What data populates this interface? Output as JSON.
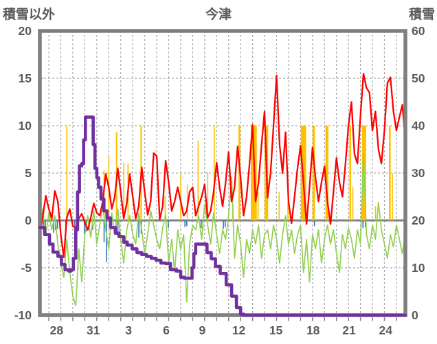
{
  "header": {
    "left_axis_title": "積雪以外",
    "title": "今津",
    "right_axis_title": "積雪"
  },
  "chart_data": {
    "type": "line",
    "title": "今津",
    "x_axis": {
      "unit": "days (Dec 26 - Jan 26, daily gridlines)",
      "range": [
        0,
        30.5
      ],
      "gridline_start": 0.75,
      "gridline_step": 1,
      "gridline_count": 30,
      "tick_labels": [
        {
          "label": "28",
          "t": 1.4
        },
        {
          "label": "31",
          "t": 4.45
        },
        {
          "label": "3",
          "t": 7.4
        },
        {
          "label": "6",
          "t": 10.55
        },
        {
          "label": "9",
          "t": 13.55
        },
        {
          "label": "12",
          "t": 16.6
        },
        {
          "label": "15",
          "t": 19.7
        },
        {
          "label": "18",
          "t": 22.8
        },
        {
          "label": "21",
          "t": 25.8
        },
        {
          "label": "24",
          "t": 28.85
        }
      ]
    },
    "left_axis": {
      "label": "積雪以外",
      "range": [
        -10,
        20
      ],
      "ticks": [
        "20",
        "15",
        "10",
        "5",
        "0",
        "-5",
        "-10"
      ],
      "tick_values": [
        20,
        15,
        10,
        5,
        0,
        -5,
        -10
      ],
      "gridline_values": [
        15,
        10,
        5,
        -5
      ],
      "zero_line_value": 0
    },
    "right_axis": {
      "label": "積雪",
      "range": [
        0,
        60
      ],
      "ticks": [
        "60",
        "50",
        "40",
        "30",
        "20",
        "10",
        "0"
      ],
      "tick_values": [
        60,
        50,
        40,
        30,
        20,
        10,
        0
      ]
    },
    "grid": {
      "vertical": true,
      "horizontal": true,
      "dashed": true,
      "gridline_color": "#A6A6A6",
      "zero_line_color": "#808080",
      "border_color": "#7F7F7F",
      "text_color": "#595959",
      "legend": "none"
    },
    "series": [
      {
        "name": "orange-bars",
        "type": "bar",
        "axis": "left",
        "color": "#FFC000",
        "bars": [
          [
            0.85,
            0.8,
            0.08
          ],
          [
            2.25,
            10,
            0.1
          ],
          [
            5.35,
            5.3,
            0.08
          ],
          [
            5.75,
            6.8,
            0.08
          ],
          [
            6.4,
            9.3,
            0.12
          ],
          [
            7.0,
            6.1,
            0.08
          ],
          [
            7.35,
            6.0,
            0.08
          ],
          [
            8.45,
            10,
            0.12
          ],
          [
            10.45,
            2.6,
            0.08
          ],
          [
            11.75,
            4.9,
            0.08
          ],
          [
            12.3,
            3.8,
            0.08
          ],
          [
            13.2,
            8.4,
            0.08
          ],
          [
            14.0,
            5.1,
            0.08
          ],
          [
            14.55,
            10,
            0.1
          ],
          [
            16.1,
            1.8,
            0.1
          ],
          [
            16.65,
            10,
            0.15
          ],
          [
            17.85,
            10,
            0.5
          ],
          [
            18.2,
            3.0,
            0.08
          ],
          [
            18.9,
            10,
            0.3
          ],
          [
            19.95,
            3.0,
            0.06
          ],
          [
            20.7,
            2.0,
            0.1
          ],
          [
            22.0,
            10,
            0.45
          ],
          [
            22.85,
            10,
            0.2
          ],
          [
            23.95,
            10,
            0.25
          ],
          [
            25.9,
            10,
            0.15
          ],
          [
            26.1,
            3.5,
            0.06
          ],
          [
            27.05,
            10,
            0.35
          ],
          [
            28.0,
            1.5,
            0.08
          ],
          [
            29.2,
            10,
            0.15
          ],
          [
            29.4,
            5.0,
            0.06
          ]
        ]
      },
      {
        "name": "blue-bars",
        "type": "bar",
        "axis": "left",
        "color": "#2E75B6",
        "bars": [
          [
            0.3,
            -1.2,
            0.07
          ],
          [
            0.45,
            -0.7,
            0.07
          ],
          [
            1.15,
            -1.3,
            0.07
          ],
          [
            1.3,
            -1.0,
            0.07
          ],
          [
            1.45,
            -0.9,
            0.07
          ],
          [
            2.15,
            -1.5,
            0.07
          ],
          [
            2.9,
            -2.1,
            0.07
          ],
          [
            3.05,
            -1.8,
            0.07
          ],
          [
            3.7,
            -1.4,
            0.07
          ],
          [
            3.85,
            -1.2,
            0.07
          ],
          [
            4.4,
            -1.0,
            0.07
          ],
          [
            5.35,
            -2.3,
            0.07
          ],
          [
            5.55,
            -4.4,
            0.07
          ],
          [
            6.35,
            -1.5,
            0.07
          ],
          [
            6.5,
            -1.3,
            0.07
          ],
          [
            8.25,
            -1.8,
            0.07
          ],
          [
            8.45,
            -1.4,
            0.07
          ],
          [
            10.7,
            -0.8,
            0.07
          ],
          [
            12.1,
            -0.7,
            0.07
          ],
          [
            12.25,
            -0.6,
            0.07
          ],
          [
            13.45,
            -0.8,
            0.07
          ],
          [
            13.6,
            -0.9,
            0.07
          ],
          [
            15.3,
            -0.9,
            0.07
          ],
          [
            15.45,
            -0.7,
            0.07
          ],
          [
            22.9,
            -0.6,
            0.07
          ],
          [
            26.95,
            -0.8,
            0.07
          ],
          [
            27.15,
            -0.7,
            0.07
          ]
        ]
      },
      {
        "name": "green-line",
        "type": "line",
        "axis": "left",
        "color": "#92D050",
        "x_step": 0.25,
        "values": [
          -0.5,
          1.2,
          -1.5,
          0.8,
          -1.0,
          0.5,
          -2.5,
          -4.5,
          -6.0,
          -2.0,
          -5.5,
          -8.0,
          -9.0,
          -3.0,
          -6.5,
          -1.5,
          0.5,
          -1.8,
          1.0,
          -2.5,
          -0.5,
          1.5,
          -1.0,
          -3.0,
          0.8,
          -1.5,
          1.2,
          -2.0,
          -4.5,
          -1.0,
          0.5,
          -1.5,
          -2.5,
          0.8,
          -1.0,
          -3.5,
          -1.5,
          1.0,
          -0.5,
          -2.0,
          -3.0,
          -0.8,
          0.5,
          -4.5,
          -2.0,
          -5.5,
          -1.0,
          -3.0,
          -1.5,
          -8.6,
          -2.5,
          -0.5,
          -1.0,
          0.5,
          -2.0,
          1.7,
          -0.5,
          -2.5,
          0.8,
          -1.5,
          -3.5,
          -1.0,
          -2.0,
          0.5,
          4.6,
          -4.0,
          -0.5,
          -2.5,
          -6.0,
          -2.0,
          -3.5,
          -1.0,
          -2.5,
          -0.5,
          -4.0,
          -1.5,
          -1.0,
          -3.0,
          -0.5,
          -2.0,
          -4.5,
          -1.5,
          0.5,
          -2.5,
          -1.0,
          -3.5,
          -1.5,
          -0.5,
          -5.5,
          -2.0,
          -6.5,
          -1.5,
          -3.0,
          -1.0,
          -4.5,
          -2.0,
          -0.5,
          -2.5,
          -1.0,
          -3.5,
          -5.5,
          -1.5,
          -3.0,
          -0.8,
          -2.0,
          -4.0,
          -1.0,
          -2.5,
          7.0,
          -1.5,
          -3.0,
          -0.5,
          -2.0,
          1.9,
          -1.0,
          -2.5,
          -4.0,
          -1.5,
          -2.8,
          -0.5,
          -2.0,
          -3.5,
          -1.5
        ]
      },
      {
        "name": "red-line",
        "type": "line",
        "axis": "left",
        "color": "#FF0000",
        "x_step": 0.25,
        "values": [
          -1.5,
          0.5,
          2.6,
          1.2,
          0.2,
          3.1,
          2.0,
          -1.5,
          -3.9,
          0.3,
          1.2,
          -0.6,
          -0.8,
          0.2,
          0.7,
          -0.2,
          -1.0,
          0.3,
          1.8,
          0.8,
          0.5,
          2.0,
          4.9,
          3.5,
          1.2,
          2.5,
          5.5,
          3.0,
          0.2,
          1.8,
          4.9,
          2.5,
          0.2,
          1.5,
          5.6,
          3.0,
          0.6,
          2.0,
          7.1,
          6.8,
          0.1,
          1.5,
          6.3,
          4.0,
          1.0,
          2.0,
          3.5,
          2.0,
          0.5,
          1.0,
          3.0,
          3.5,
          0.5,
          1.5,
          2.5,
          3.8,
          0.3,
          1.0,
          3.0,
          6.1,
          3.5,
          1.5,
          4.0,
          7.2,
          2.0,
          3.5,
          7.8,
          4.5,
          0.5,
          2.5,
          6.0,
          10.1,
          2.0,
          4.0,
          8.0,
          11.5,
          2.4,
          5.0,
          10.0,
          15.3,
          8.0,
          5.0,
          9.3,
          2.0,
          -0.3,
          2.5,
          5.5,
          7.9,
          4.0,
          -0.4,
          3.5,
          7.7,
          4.5,
          2.0,
          4.0,
          5.7,
          2.0,
          -0.4,
          3.0,
          6.6,
          4.0,
          2.5,
          6.0,
          10.0,
          12.5,
          7.0,
          6.0,
          11.0,
          15.5,
          14.0,
          13.5,
          9.5,
          11.5,
          7.5,
          6.0,
          9.5,
          14.5,
          15.1,
          11.5,
          9.5,
          10.9,
          12.2,
          8.5
        ]
      },
      {
        "name": "purple-step-snow-depth",
        "type": "step",
        "axis": "right",
        "color": "#7030A0",
        "points": [
          [
            0,
            18.5
          ],
          [
            0.4,
            17
          ],
          [
            0.8,
            15
          ],
          [
            1.1,
            13.3
          ],
          [
            1.5,
            12.4
          ],
          [
            1.8,
            10.7
          ],
          [
            2.1,
            9.6
          ],
          [
            2.4,
            9.3
          ],
          [
            2.6,
            9.6
          ],
          [
            2.8,
            12
          ],
          [
            3.0,
            18
          ],
          [
            3.15,
            26
          ],
          [
            3.3,
            31.5
          ],
          [
            3.5,
            32
          ],
          [
            3.65,
            37
          ],
          [
            3.8,
            41.8
          ],
          [
            4.3,
            41.8
          ],
          [
            4.45,
            36
          ],
          [
            4.6,
            31
          ],
          [
            4.75,
            29
          ],
          [
            4.9,
            27
          ],
          [
            5.1,
            24.5
          ],
          [
            5.35,
            22
          ],
          [
            5.6,
            20.5
          ],
          [
            5.9,
            18.5
          ],
          [
            6.3,
            17.3
          ],
          [
            6.6,
            16.6
          ],
          [
            7.0,
            15.4
          ],
          [
            7.3,
            14.8
          ],
          [
            7.7,
            14
          ],
          [
            8.1,
            13.2
          ],
          [
            8.5,
            12.8
          ],
          [
            8.9,
            12.4
          ],
          [
            9.3,
            12
          ],
          [
            9.7,
            11.6
          ],
          [
            10.1,
            11
          ],
          [
            10.5,
            10.9
          ],
          [
            10.9,
            9.6
          ],
          [
            11.4,
            9.3
          ],
          [
            11.75,
            8
          ],
          [
            12.05,
            7.8
          ],
          [
            12.55,
            7.8
          ],
          [
            12.7,
            10
          ],
          [
            12.85,
            13
          ],
          [
            13.0,
            15
          ],
          [
            13.8,
            15
          ],
          [
            13.95,
            13.2
          ],
          [
            14.3,
            11.9
          ],
          [
            14.65,
            10.3
          ],
          [
            15.05,
            8.8
          ],
          [
            15.55,
            6.4
          ],
          [
            16.0,
            4
          ],
          [
            16.4,
            1.6
          ],
          [
            16.75,
            0.2
          ],
          [
            17.0,
            0
          ],
          [
            30.5,
            0
          ]
        ]
      }
    ]
  }
}
